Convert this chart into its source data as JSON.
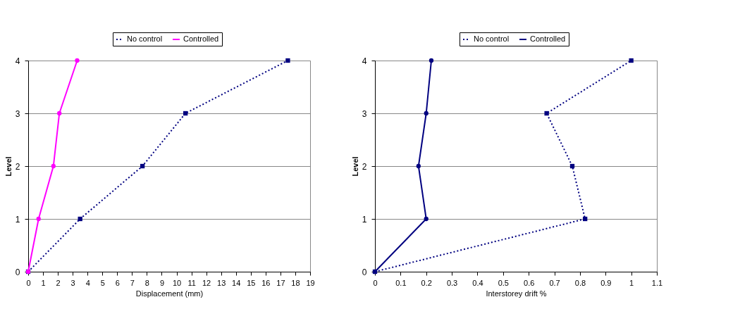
{
  "chart_data": [
    {
      "type": "line",
      "xlabel": "Displacement (mm)",
      "ylabel": "Level",
      "xlim": [
        0,
        19
      ],
      "xticks": [
        0,
        1,
        2,
        3,
        4,
        5,
        6,
        7,
        8,
        9,
        10,
        11,
        12,
        13,
        14,
        15,
        16,
        17,
        18,
        19
      ],
      "ylim": [
        0,
        4
      ],
      "yticks": [
        0,
        1,
        2,
        3,
        4
      ],
      "grid": "y",
      "legend": "top",
      "series": [
        {
          "name": "No control",
          "color": "#000080",
          "marker": "square",
          "line_style": "dotted",
          "x": [
            0,
            3.5,
            7.7,
            10.6,
            17.5
          ],
          "values": [
            0,
            1,
            2,
            3,
            4
          ]
        },
        {
          "name": "Controlled",
          "color": "#ff00ff",
          "marker": "circle",
          "line_style": "solid",
          "x": [
            0,
            0.7,
            1.7,
            2.1,
            3.3
          ],
          "values": [
            0,
            1,
            2,
            3,
            4
          ]
        }
      ]
    },
    {
      "type": "line",
      "xlabel": "Interstorey drift %",
      "ylabel": "Level",
      "xlim": [
        0,
        1.1
      ],
      "xticks": [
        0,
        0.1,
        0.2,
        0.3,
        0.4,
        0.5,
        0.6,
        0.7,
        0.8,
        0.9,
        1,
        1.1
      ],
      "ylim": [
        0,
        4
      ],
      "yticks": [
        0,
        1,
        2,
        3,
        4
      ],
      "grid": "y",
      "legend": "top",
      "series": [
        {
          "name": "No control",
          "color": "#000080",
          "marker": "square",
          "line_style": "dotted",
          "x": [
            0,
            0.82,
            0.77,
            0.67,
            1.0
          ],
          "values": [
            0,
            1,
            2,
            3,
            4
          ]
        },
        {
          "name": "Controlled",
          "color": "#000080",
          "marker": "circle",
          "line_style": "solid",
          "x": [
            0,
            0.2,
            0.17,
            0.2,
            0.22
          ],
          "values": [
            0,
            1,
            2,
            3,
            4
          ]
        }
      ]
    }
  ]
}
